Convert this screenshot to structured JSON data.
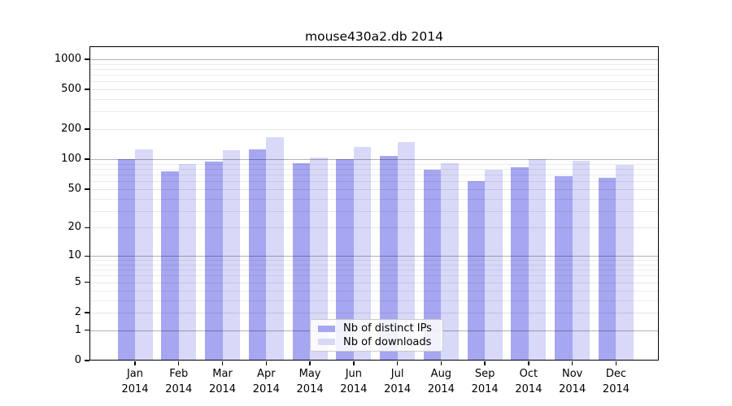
{
  "title": "mouse430a2.db 2014",
  "colors": {
    "distinct_ips": "#a6a6f1",
    "downloads": "#d8d8f8",
    "background": "#ffffff",
    "axis": "#000000"
  },
  "chart_data": {
    "type": "bar",
    "title": "mouse430a2.db 2014",
    "categories": [
      "Jan 2014",
      "Feb 2014",
      "Mar 2014",
      "Apr 2014",
      "May 2014",
      "Jun 2014",
      "Jul 2014",
      "Aug 2014",
      "Sep 2014",
      "Oct 2014",
      "Nov 2014",
      "Dec 2014"
    ],
    "x_tick_line1": [
      "Jan",
      "Feb",
      "Mar",
      "Apr",
      "May",
      "Jun",
      "Jul",
      "Aug",
      "Sep",
      "Oct",
      "Nov",
      "Dec"
    ],
    "x_tick_line2": "2014",
    "series": [
      {
        "name": "Nb of distinct IPs",
        "color": "#a6a6f1",
        "values": [
          100,
          75,
          95,
          125,
          92,
          101,
          109,
          79,
          60,
          83,
          68,
          65
        ]
      },
      {
        "name": "Nb of downloads",
        "color": "#d8d8f8",
        "values": [
          125,
          89,
          123,
          167,
          105,
          134,
          150,
          92,
          79,
          100,
          97,
          88
        ]
      }
    ],
    "y_axis": {
      "scale": "log10(value+1)",
      "major_ticks": [
        0,
        1,
        2,
        5,
        10,
        20,
        50,
        100,
        200,
        500,
        1000
      ],
      "emphasized_gridlines": [
        1,
        10,
        100,
        1000
      ],
      "minor_gridlines": [
        3,
        4,
        6,
        7,
        8,
        9,
        30,
        40,
        60,
        70,
        80,
        90,
        300,
        400,
        600,
        700,
        800,
        900
      ],
      "ylim": [
        0,
        1300
      ]
    },
    "grid": true,
    "legend": {
      "position": "lower center",
      "labels": [
        "Nb of distinct IPs",
        "Nb of downloads"
      ]
    }
  }
}
